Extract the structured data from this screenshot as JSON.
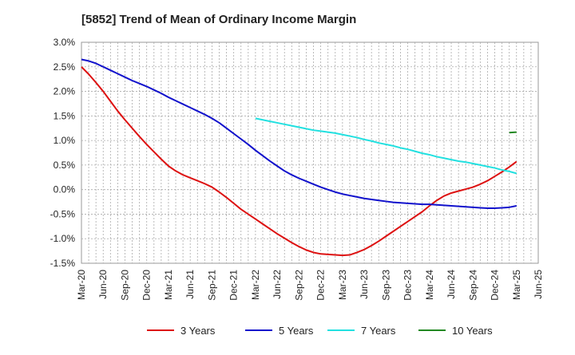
{
  "chart_data": {
    "type": "line",
    "title": "[5852]  Trend of Mean of Ordinary Income Margin",
    "xlabel": "",
    "ylabel": "",
    "x_ticks": [
      "Mar-20",
      "Jun-20",
      "Sep-20",
      "Dec-20",
      "Mar-21",
      "Jun-21",
      "Sep-21",
      "Dec-21",
      "Mar-22",
      "Jun-22",
      "Sep-22",
      "Dec-22",
      "Mar-23",
      "Jun-23",
      "Sep-23",
      "Dec-23",
      "Mar-24",
      "Jun-24",
      "Sep-24",
      "Dec-24",
      "Mar-25",
      "Jun-25"
    ],
    "y_ticks": [
      "3.0%",
      "2.5%",
      "2.0%",
      "1.5%",
      "1.0%",
      "0.5%",
      "0.0%",
      "-0.5%",
      "-1.0%",
      "-1.5%"
    ],
    "ylim": [
      -1.5,
      3.0
    ],
    "grid": true,
    "legend_position": "bottom",
    "series": [
      {
        "name": "3 Years",
        "color": "#dd1111",
        "x": [
          "Mar-20",
          "Apr-20",
          "May-20",
          "Jun-20",
          "Jul-20",
          "Aug-20",
          "Sep-20",
          "Oct-20",
          "Nov-20",
          "Dec-20",
          "Jan-21",
          "Feb-21",
          "Mar-21",
          "Apr-21",
          "May-21",
          "Jun-21",
          "Jul-21",
          "Aug-21",
          "Sep-21",
          "Oct-21",
          "Nov-21",
          "Dec-21",
          "Jan-22",
          "Feb-22",
          "Mar-22",
          "Apr-22",
          "May-22",
          "Jun-22",
          "Jul-22",
          "Aug-22",
          "Sep-22",
          "Oct-22",
          "Nov-22",
          "Dec-22",
          "Jan-23",
          "Feb-23",
          "Mar-23",
          "Apr-23",
          "May-23",
          "Jun-23",
          "Jul-23",
          "Aug-23",
          "Sep-23",
          "Oct-23",
          "Nov-23",
          "Dec-23",
          "Jan-24",
          "Feb-24",
          "Mar-24",
          "Apr-24",
          "May-24",
          "Jun-24",
          "Jul-24",
          "Aug-24",
          "Sep-24",
          "Oct-24",
          "Nov-24",
          "Dec-24",
          "Jan-25",
          "Feb-25",
          "Mar-25"
        ],
        "values": [
          2.5,
          2.35,
          2.18,
          2.0,
          1.8,
          1.6,
          1.42,
          1.25,
          1.08,
          0.92,
          0.77,
          0.62,
          0.48,
          0.38,
          0.3,
          0.24,
          0.18,
          0.12,
          0.05,
          -0.05,
          -0.16,
          -0.28,
          -0.4,
          -0.5,
          -0.6,
          -0.7,
          -0.8,
          -0.9,
          -0.99,
          -1.08,
          -1.16,
          -1.23,
          -1.28,
          -1.31,
          -1.32,
          -1.33,
          -1.34,
          -1.33,
          -1.28,
          -1.22,
          -1.14,
          -1.05,
          -0.95,
          -0.85,
          -0.75,
          -0.65,
          -0.55,
          -0.45,
          -0.33,
          -0.22,
          -0.13,
          -0.07,
          -0.03,
          0.01,
          0.05,
          0.11,
          0.18,
          0.27,
          0.36,
          0.46,
          0.57
        ]
      },
      {
        "name": "5 Years",
        "color": "#1111cc",
        "x": [
          "Mar-20",
          "Apr-20",
          "May-20",
          "Jun-20",
          "Jul-20",
          "Aug-20",
          "Sep-20",
          "Oct-20",
          "Nov-20",
          "Dec-20",
          "Jan-21",
          "Feb-21",
          "Mar-21",
          "Apr-21",
          "May-21",
          "Jun-21",
          "Jul-21",
          "Aug-21",
          "Sep-21",
          "Oct-21",
          "Nov-21",
          "Dec-21",
          "Jan-22",
          "Feb-22",
          "Mar-22",
          "Apr-22",
          "May-22",
          "Jun-22",
          "Jul-22",
          "Aug-22",
          "Sep-22",
          "Oct-22",
          "Nov-22",
          "Dec-22",
          "Jan-23",
          "Feb-23",
          "Mar-23",
          "Apr-23",
          "May-23",
          "Jun-23",
          "Jul-23",
          "Aug-23",
          "Sep-23",
          "Oct-23",
          "Nov-23",
          "Dec-23",
          "Jan-24",
          "Feb-24",
          "Mar-24",
          "Apr-24",
          "May-24",
          "Jun-24",
          "Jul-24",
          "Aug-24",
          "Sep-24",
          "Oct-24",
          "Nov-24",
          "Dec-24",
          "Jan-25",
          "Feb-25",
          "Mar-25"
        ],
        "values": [
          2.65,
          2.62,
          2.57,
          2.5,
          2.43,
          2.36,
          2.29,
          2.22,
          2.16,
          2.1,
          2.03,
          1.96,
          1.88,
          1.81,
          1.74,
          1.67,
          1.6,
          1.53,
          1.45,
          1.36,
          1.25,
          1.14,
          1.03,
          0.92,
          0.8,
          0.69,
          0.58,
          0.48,
          0.38,
          0.3,
          0.23,
          0.17,
          0.11,
          0.05,
          0.0,
          -0.05,
          -0.09,
          -0.12,
          -0.15,
          -0.18,
          -0.2,
          -0.22,
          -0.24,
          -0.26,
          -0.27,
          -0.28,
          -0.29,
          -0.3,
          -0.3,
          -0.31,
          -0.32,
          -0.33,
          -0.34,
          -0.35,
          -0.36,
          -0.37,
          -0.38,
          -0.38,
          -0.37,
          -0.36,
          -0.33
        ]
      },
      {
        "name": "7 Years",
        "color": "#22e0e0",
        "x": [
          "Mar-22",
          "Apr-22",
          "May-22",
          "Jun-22",
          "Jul-22",
          "Aug-22",
          "Sep-22",
          "Oct-22",
          "Nov-22",
          "Dec-22",
          "Jan-23",
          "Feb-23",
          "Mar-23",
          "Apr-23",
          "May-23",
          "Jun-23",
          "Jul-23",
          "Aug-23",
          "Sep-23",
          "Oct-23",
          "Nov-23",
          "Dec-23",
          "Jan-24",
          "Feb-24",
          "Mar-24",
          "Apr-24",
          "May-24",
          "Jun-24",
          "Jul-24",
          "Aug-24",
          "Sep-24",
          "Oct-24",
          "Nov-24",
          "Dec-24",
          "Jan-25",
          "Feb-25",
          "Mar-25"
        ],
        "values": [
          1.45,
          1.42,
          1.39,
          1.36,
          1.33,
          1.3,
          1.27,
          1.24,
          1.21,
          1.19,
          1.17,
          1.15,
          1.12,
          1.09,
          1.06,
          1.02,
          0.99,
          0.95,
          0.92,
          0.89,
          0.85,
          0.82,
          0.78,
          0.74,
          0.71,
          0.67,
          0.64,
          0.61,
          0.58,
          0.56,
          0.53,
          0.5,
          0.47,
          0.44,
          0.4,
          0.37,
          0.33
        ]
      },
      {
        "name": "10 Years",
        "color": "#228822",
        "x": [
          "Feb-25",
          "Mar-25"
        ],
        "values": [
          1.16,
          1.17
        ]
      }
    ]
  }
}
